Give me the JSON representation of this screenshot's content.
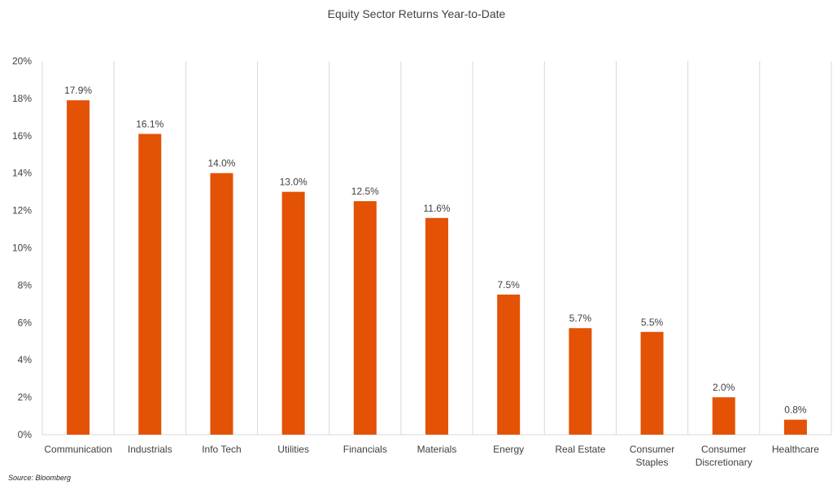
{
  "chart_data": {
    "type": "bar",
    "title": "Equity Sector Returns Year-to-Date",
    "xlabel": "",
    "ylabel": "",
    "categories": [
      "Communication",
      "Industrials",
      "Info Tech",
      "Utilities",
      "Financials",
      "Materials",
      "Energy",
      "Real Estate",
      "Consumer Staples",
      "Consumer Discretionary",
      "Healthcare"
    ],
    "category_lines": [
      [
        "Communication"
      ],
      [
        "Industrials"
      ],
      [
        "Info Tech"
      ],
      [
        "Utilities"
      ],
      [
        "Financials"
      ],
      [
        "Materials"
      ],
      [
        "Energy"
      ],
      [
        "Real Estate"
      ],
      [
        "Consumer",
        "Staples"
      ],
      [
        "Consumer",
        "Discretionary"
      ],
      [
        "Healthcare"
      ]
    ],
    "values": [
      17.9,
      16.1,
      14.0,
      13.0,
      12.5,
      11.6,
      7.5,
      5.7,
      5.5,
      2.0,
      0.8
    ],
    "data_labels": [
      "17.9%",
      "16.1%",
      "14.0%",
      "13.0%",
      "12.5%",
      "11.6%",
      "7.5%",
      "5.7%",
      "5.5%",
      "2.0%",
      "0.8%"
    ],
    "ylim": [
      0,
      20
    ],
    "yticks": [
      0,
      2,
      4,
      6,
      8,
      10,
      12,
      14,
      16,
      18,
      20
    ],
    "ytick_labels": [
      "0%",
      "2%",
      "4%",
      "6%",
      "8%",
      "10%",
      "12%",
      "14%",
      "16%",
      "18%",
      "20%"
    ],
    "grid": "vertical separators between categories",
    "legend": "none",
    "bar_color": "#E35205",
    "grid_color": "#D9D9D9"
  },
  "source_note": "Source: Bloomberg"
}
